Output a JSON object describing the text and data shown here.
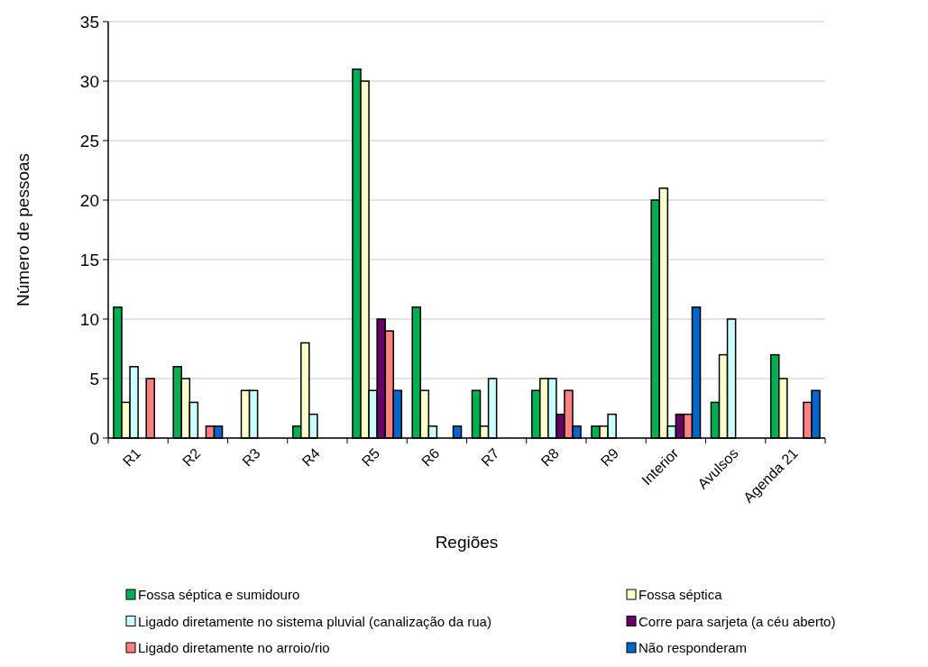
{
  "chart_data": {
    "type": "bar",
    "xlabel": "Regiões",
    "ylabel": "Número de pessoas",
    "categories": [
      "R1",
      "R2",
      "R3",
      "R4",
      "R5",
      "R6",
      "R7",
      "R8",
      "R9",
      "Interior",
      "Avulsos",
      "Agenda 21"
    ],
    "series": [
      {
        "name": "Fossa séptica e sumidouro",
        "color": "#00b050",
        "values": [
          11,
          6,
          null,
          1,
          31,
          11,
          4,
          4,
          1,
          20,
          3,
          7
        ]
      },
      {
        "name": "Fossa séptica",
        "color": "#ffffcc",
        "values": [
          3,
          5,
          4,
          8,
          30,
          4,
          1,
          5,
          1,
          21,
          7,
          5
        ]
      },
      {
        "name": "Ligado diretamente no sistema pluvial (canalização da rua)",
        "color": "#ccffff",
        "values": [
          6,
          3,
          4,
          2,
          4,
          1,
          5,
          5,
          2,
          1,
          10,
          null
        ]
      },
      {
        "name": "Corre para sarjeta (a céu aberto)",
        "color": "#660066",
        "values": [
          null,
          null,
          null,
          null,
          10,
          null,
          null,
          2,
          null,
          2,
          null,
          null
        ]
      },
      {
        "name": "Ligado diretamente no arroio/rio",
        "color": "#ff8080",
        "values": [
          5,
          1,
          null,
          null,
          9,
          null,
          null,
          4,
          null,
          2,
          null,
          3
        ]
      },
      {
        "name": "Não responderam",
        "color": "#0066cc",
        "values": [
          null,
          1,
          null,
          null,
          4,
          1,
          null,
          1,
          null,
          11,
          null,
          4
        ]
      }
    ],
    "ylim": [
      0,
      35
    ],
    "yticks": [
      0,
      5,
      10,
      15,
      20,
      25,
      30,
      35
    ],
    "grid": "y",
    "legend": "bottom"
  }
}
